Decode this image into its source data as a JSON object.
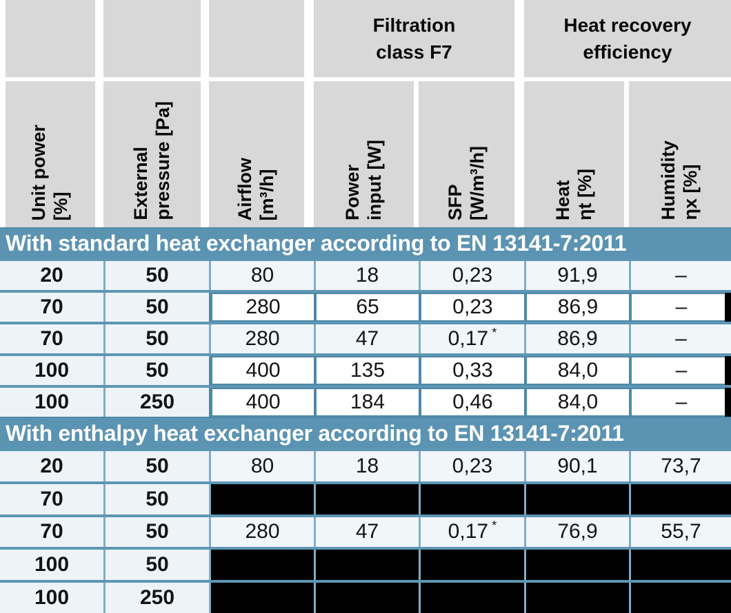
{
  "table": {
    "columns": [
      {
        "id": "unit-power",
        "label_lines": [
          "Unit power",
          "[%]"
        ]
      },
      {
        "id": "external-pressure",
        "label_lines": [
          "External",
          "pressure [Pa]"
        ]
      },
      {
        "id": "airflow",
        "label_lines": [
          "Airflow",
          "[m³/h]"
        ]
      },
      {
        "id": "power-input",
        "label_lines": [
          "Power",
          "input [W]"
        ]
      },
      {
        "id": "sfp",
        "label_lines": [
          "SFP",
          "[W/m³/h]"
        ]
      },
      {
        "id": "heat-efficiency",
        "label_lines": [
          "Heat",
          "ηt [%]"
        ]
      },
      {
        "id": "humidity-efficiency",
        "label_lines": [
          "Humidity",
          "ηx [%]"
        ]
      }
    ],
    "groups": [
      {
        "id": "filtration-class",
        "label_lines": [
          "Filtration",
          "class F7"
        ]
      },
      {
        "id": "heat-recovery-efficiency",
        "label_lines": [
          "Heat recovery",
          "efficiency"
        ]
      }
    ],
    "sections": [
      {
        "title": "With standard heat exchanger according to EN 13141-7:2011",
        "rows": [
          {
            "style": "normal",
            "cells": [
              "20",
              "50",
              "80",
              "18",
              "0,23",
              "91,9",
              "–"
            ]
          },
          {
            "style": "boxed",
            "cells": [
              "70",
              "50",
              "280",
              "65",
              "0,23",
              "86,9",
              "–"
            ]
          },
          {
            "style": "normal",
            "cells": [
              "70",
              "50",
              "280",
              "47",
              "0,17 *",
              "86,9",
              "–"
            ]
          },
          {
            "style": "boxed",
            "cells": [
              "100",
              "50",
              "400",
              "135",
              "0,33",
              "84,0",
              "–"
            ]
          },
          {
            "style": "boxed",
            "cells": [
              "100",
              "250",
              "400",
              "184",
              "0,46",
              "84,0",
              "–"
            ]
          }
        ]
      },
      {
        "title": "With enthalpy heat exchanger according to EN 13141-7:2011",
        "rows": [
          {
            "style": "normal",
            "cells": [
              "20",
              "50",
              "80",
              "18",
              "0,23",
              "90,1",
              "73,7"
            ]
          },
          {
            "style": "redacted",
            "cells": [
              "70",
              "50",
              "",
              "",
              "",
              "",
              ""
            ]
          },
          {
            "style": "normal",
            "cells": [
              "70",
              "50",
              "280",
              "47",
              "0,17 *",
              "76,9",
              "55,7"
            ]
          },
          {
            "style": "redacted",
            "cells": [
              "100",
              "50",
              "",
              "",
              "",
              "",
              ""
            ]
          },
          {
            "style": "redacted",
            "cells": [
              "100",
              "250",
              "",
              "",
              "",
              "",
              ""
            ]
          }
        ]
      }
    ]
  },
  "colors": {
    "header_gray": "#d8d8d8",
    "section_band_blue": "#5b93b2",
    "row_separator_blue": "#5e96b4",
    "thin_divider_blue": "#7fadc7",
    "boxed_border_blue": "#4d89a9",
    "row_background": "#f1f6f9",
    "boxed_background": "#ffffff",
    "redacted_black": "#000000",
    "text_black": "#141414",
    "text_white": "#ffffff"
  }
}
